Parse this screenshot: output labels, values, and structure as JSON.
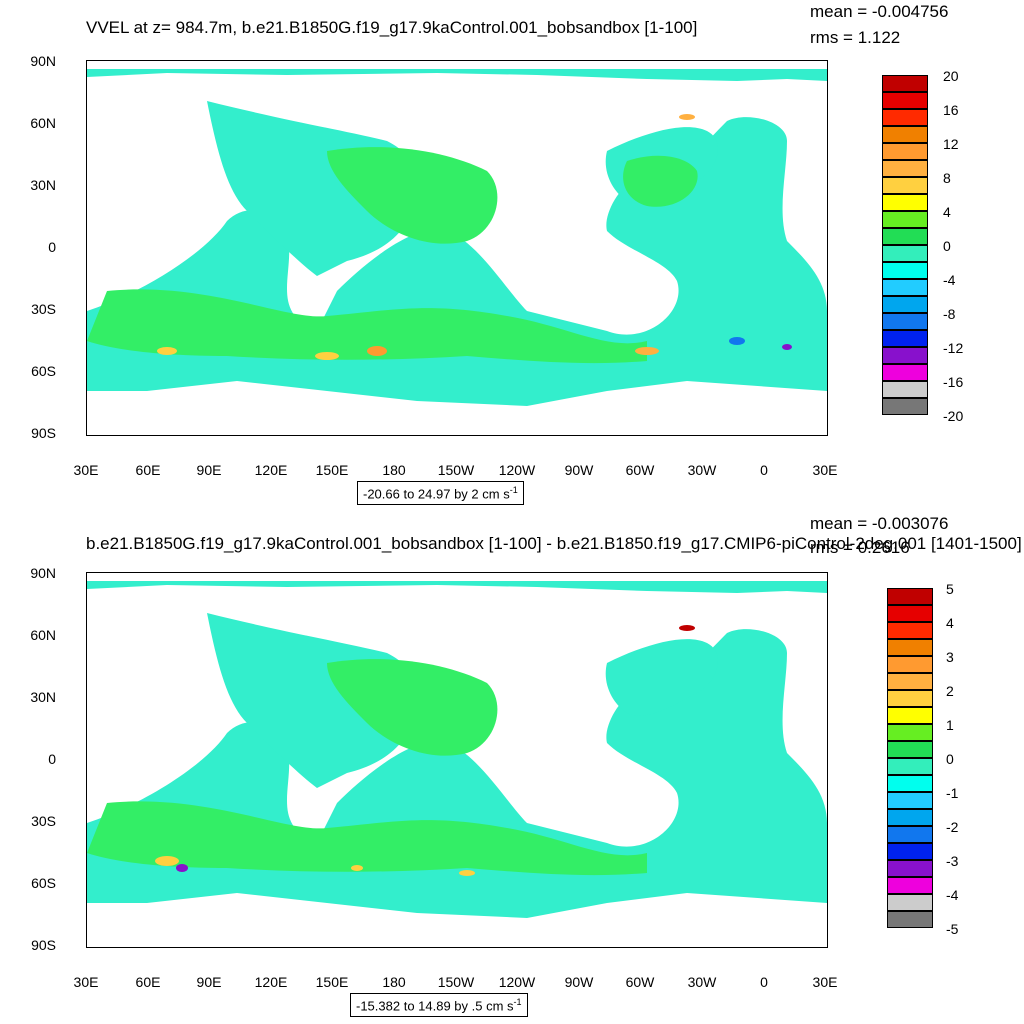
{
  "panels": [
    {
      "title": "VVEL at z= 984.7m, b.e21.B1850G.f19_g17.9kaControl.001_bobsandbox [1-100]",
      "mean": "mean = -0.004756",
      "rms": "rms = 1.122",
      "range": "-20.66 to 24.97 by 2 cm s",
      "range_sup": "-1",
      "colorbar": [
        "20",
        "16",
        "12",
        "8",
        "4",
        "0",
        "-4",
        "-8",
        "-12",
        "-16",
        "-20"
      ]
    },
    {
      "title": "b.e21.B1850G.f19_g17.9kaControl.001_bobsandbox [1-100] - b.e21.B1850.f19_g17.CMIP6-piControl-2deg.001 [1401-1500]",
      "mean": "mean = -0.003076",
      "rms": "rms = 0.2616",
      "range": "-15.382 to 14.89 by .5 cm s",
      "range_sup": "-1",
      "colorbar": [
        "5",
        "4",
        "3",
        "2",
        "1",
        "0",
        "-1",
        "-2",
        "-3",
        "-4",
        "-5"
      ]
    }
  ],
  "lat_labels": [
    "90N",
    "60N",
    "30N",
    "0",
    "30S",
    "60S",
    "90S"
  ],
  "lon_labels": [
    "30E",
    "60E",
    "90E",
    "120E",
    "150E",
    "180",
    "150W",
    "120W",
    "90W",
    "60W",
    "30W",
    "0",
    "30E"
  ],
  "colors": [
    "#c00000",
    "#e60000",
    "#ff2a00",
    "#f08000",
    "#ff9a30",
    "#ffb040",
    "#ffd040",
    "#ffff00",
    "#66ee22",
    "#22dd55",
    "#33eebb",
    "#00ffee",
    "#22ccff",
    "#00a6ee",
    "#1177ee",
    "#0022ee",
    "#8811cc",
    "#ee00dd",
    "#cccccc",
    "#777777"
  ],
  "ocean_base": "#33eecc",
  "ocean_green": "#33ee66"
}
